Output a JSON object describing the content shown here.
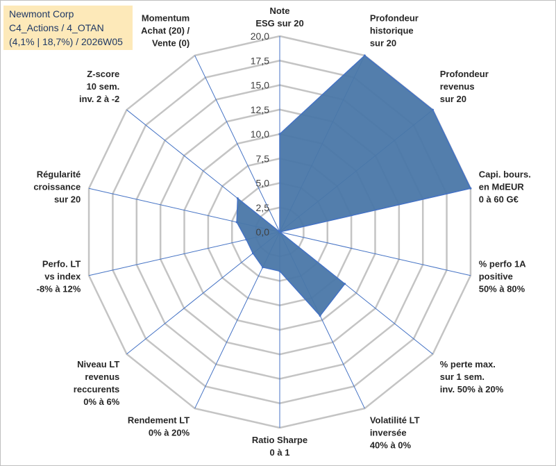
{
  "header": {
    "company": "Newmont Corp",
    "portfolio": "C4_Actions / 4_OTAN",
    "stats": "(4,1% | 18,7%) / 2026W05"
  },
  "colors": {
    "fill": "#4a77a8",
    "stroke": "#4472c4",
    "grid": "#c4c4c4",
    "spoke": "#4472c4",
    "title_bg": "#fde9b9",
    "title_text": "#1f3864"
  },
  "chart_data": {
    "type": "radar",
    "title": "",
    "rmin": 0,
    "rmax": 20,
    "tick_step": 2.5,
    "tick_labels": [
      "0,0",
      "2,5",
      "5,0",
      "7,5",
      "10,0",
      "12,5",
      "15,0",
      "17,5",
      "20,0"
    ],
    "axes": [
      {
        "label": [
          "Note",
          "ESG sur 20"
        ],
        "value": 10
      },
      {
        "label": [
          "Profondeur",
          "historique",
          "sur 20"
        ],
        "value": 20
      },
      {
        "label": [
          "Profondeur",
          "revenus",
          "sur 20"
        ],
        "value": 20
      },
      {
        "label": [
          "Capi. bours.",
          "en MdEUR",
          "0 à 60 G€"
        ],
        "value": 20
      },
      {
        "label": [
          "% perfo 1A",
          "positive",
          "50% à 80%"
        ],
        "value": 0
      },
      {
        "label": [
          "% perte max.",
          "sur 1 sem.",
          "inv. 50% à 20%"
        ],
        "value": 8.5
      },
      {
        "label": [
          "Volatilité LT",
          "inversée",
          "40% à 0%"
        ],
        "value": 9.5
      },
      {
        "label": [
          "Ratio Sharpe",
          "0 à 1"
        ],
        "value": 4
      },
      {
        "label": [
          "Rendement LT",
          "0% à 20%"
        ],
        "value": 4
      },
      {
        "label": [
          "Niveau LT",
          "revenus",
          "reccurents",
          "0% à 6%"
        ],
        "value": 3.5
      },
      {
        "label": [
          "Perfo. LT",
          "vs index",
          "-8% à 12%"
        ],
        "value": 3.5
      },
      {
        "label": [
          "Régularité",
          "croissance",
          "sur 20"
        ],
        "value": 4.5
      },
      {
        "label": [
          "Z-score",
          "10 sem.",
          "inv. 2 à -2"
        ],
        "value": 5.5
      },
      {
        "label": [
          "Momentum",
          "Achat (20) /",
          "Vente (0)"
        ],
        "value": 0
      }
    ]
  }
}
